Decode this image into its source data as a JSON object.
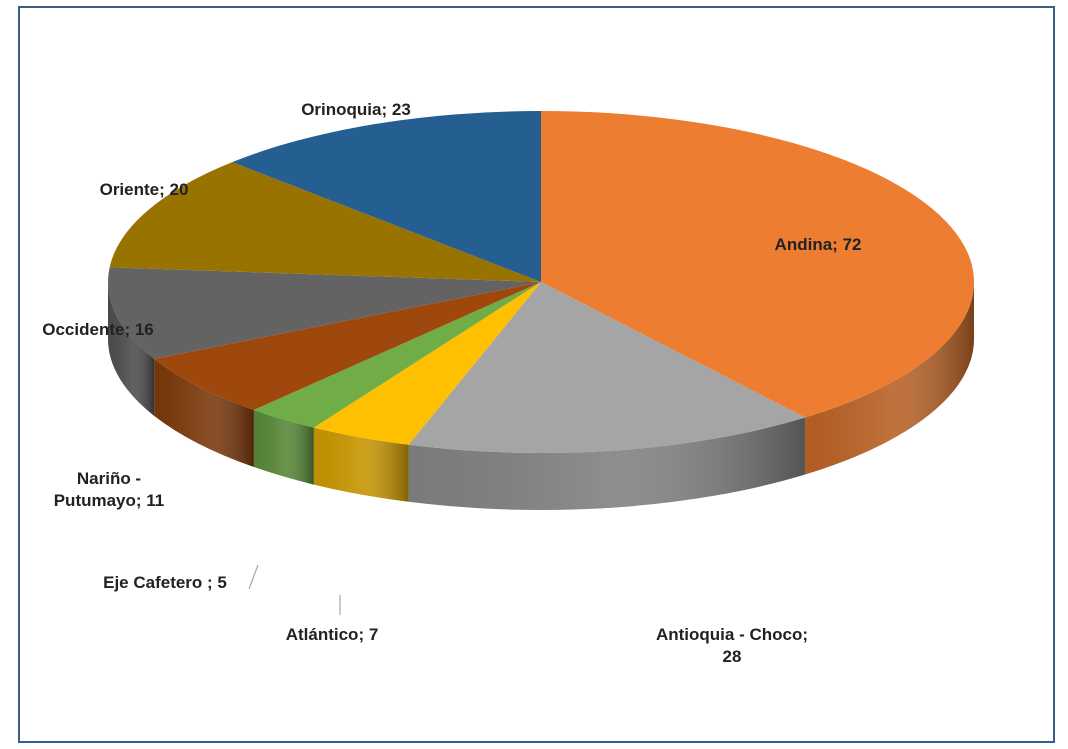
{
  "chart_data": {
    "type": "pie",
    "title": "",
    "slices": [
      {
        "label": "Andina",
        "value": 72,
        "color": "#ED7D31",
        "label_text": "Andina; 72"
      },
      {
        "label": "Antioquia - Choco",
        "value": 28,
        "color": "#A5A5A5",
        "label_text": "Antioquia - Choco; 28"
      },
      {
        "label": "Atlántico",
        "value": 7,
        "color": "#FFC000",
        "label_text": "Atlántico; 7"
      },
      {
        "label": "Eje Cafetero ",
        "value": 5,
        "color": "#70AD47",
        "label_text": "Eje Cafetero ; 5"
      },
      {
        "label": "Nariño - Putumayo",
        "value": 11,
        "color": "#9E480E",
        "label_text": "Nariño - Putumayo; 11"
      },
      {
        "label": "Occidente",
        "value": 16,
        "color": "#636363",
        "label_text": "Occidente; 16"
      },
      {
        "label": "Oriente",
        "value": 20,
        "color": "#997300",
        "label_text": "Oriente; 20"
      },
      {
        "label": "Orinoquia",
        "value": 23,
        "color": "#255E91",
        "label_text": "Orinoquia; 23"
      }
    ],
    "style": "3d-pie",
    "legend": "none",
    "data_labels": "category; value"
  }
}
